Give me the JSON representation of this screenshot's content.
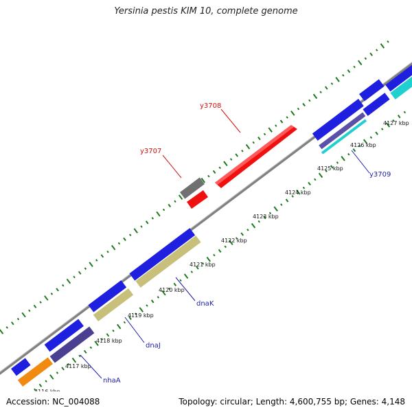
{
  "title": "Yersinia pestis KIM 10, complete genome",
  "footer": {
    "accession": "Accession: NC_004088",
    "summary": "Topology: circular; Length: 4,600,755 bp; Genes: 4,148"
  },
  "scale": {
    "labels": [
      "4116 kbp",
      "4117 kbp",
      "4118 kbp",
      "4119 kbp",
      "4120 kbp",
      "4121 kbp",
      "4122 kbp",
      "4123 kbp",
      "4124 kbp",
      "4125 kbp",
      "4126 kbp",
      "4127 kbp"
    ]
  },
  "gene_labels": [
    {
      "name": "y3708",
      "color": "#d01010"
    },
    {
      "name": "y3707",
      "color": "#d01010"
    },
    {
      "name": "y3709",
      "color": "#1a1aa8"
    },
    {
      "name": "dnaK",
      "color": "#1a1aa8"
    },
    {
      "name": "dnaJ",
      "color": "#1a1aa8"
    },
    {
      "name": "nhaA",
      "color": "#1a1aa8"
    }
  ],
  "colors": {
    "backbone": "#808080",
    "gc_ticks": "#1c7a1c",
    "cds_blue": "#1f1fe0",
    "cds_red": "#f01010",
    "cds_gray": "#707070",
    "cds_khaki": "#c8c07a",
    "cds_slate": "#4a3f90",
    "cds_orange": "#f08a10",
    "cds_cyan": "#20d0d0"
  }
}
